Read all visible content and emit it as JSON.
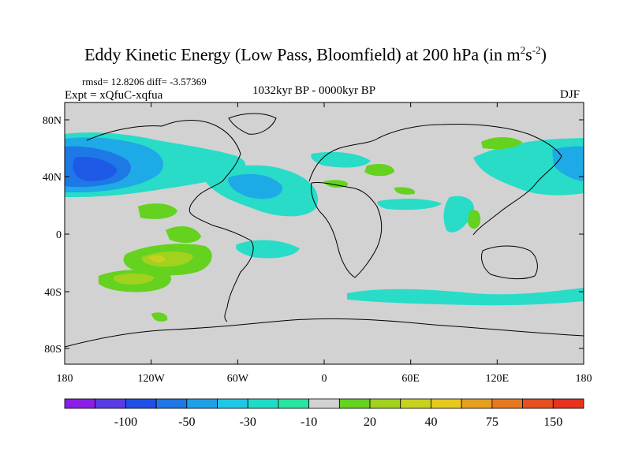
{
  "title": {
    "main": "Eddy Kinetic Energy (Low Pass, Bloomfield) at 200 hPa (in m",
    "exp1": "2",
    "mid": "s",
    "exp2": "-2",
    "close": ")"
  },
  "stats": "rmsd= 12.8206 diff= -3.57369",
  "experiment": "Expt = xQfuC-xqfua",
  "period": "1032kyr BP - 0000kyr BP",
  "season": "DJF",
  "axes": {
    "x_ticks": [
      "180",
      "120W",
      "60W",
      "0",
      "60E",
      "120E",
      "180"
    ],
    "y_ticks": [
      "80N",
      "40N",
      "0",
      "40S",
      "80S"
    ]
  },
  "colorbar": {
    "colors": [
      "#8c1ee6",
      "#5a3ce6",
      "#1e50e6",
      "#1e78e6",
      "#1ea0e6",
      "#1ec8e6",
      "#1edcc8",
      "#28e6a0",
      "#d2d2d2",
      "#64d21e",
      "#a0d21e",
      "#c8d21e",
      "#e6c81e",
      "#e6a01e",
      "#e6781e",
      "#e6501e",
      "#e6321e"
    ],
    "labels": [
      "-100",
      "-50",
      "-30",
      "-10",
      "20",
      "40",
      "75",
      "150"
    ]
  },
  "legend": {
    "strong_negative": "#1e5ae6",
    "moderate_negative": "#1eaae6",
    "weak_negative": "#28dcc8",
    "near_zero": "#d2d2d2",
    "weak_positive": "#64d21e",
    "moderate_positive": "#a0d21e",
    "strong_positive": "#c8d21e"
  }
}
